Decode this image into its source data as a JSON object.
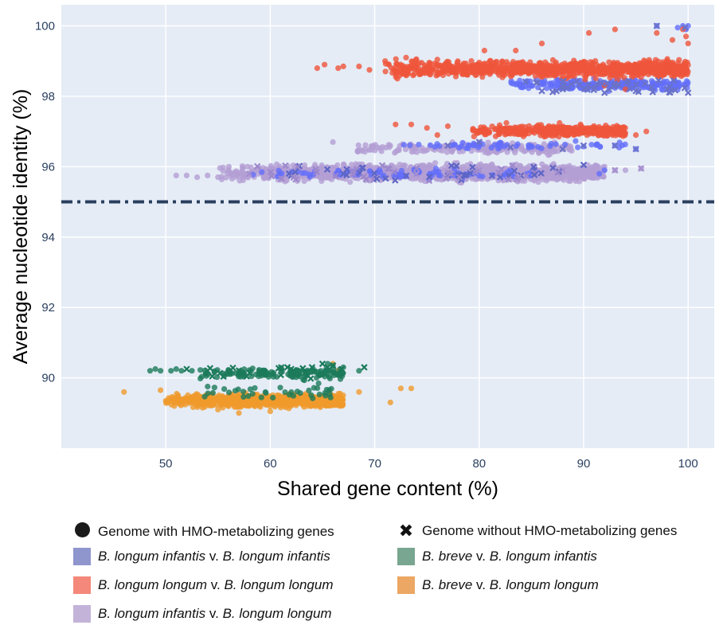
{
  "chart_data": {
    "type": "scatter",
    "xlabel": "Shared gene content (%)",
    "ylabel": "Average nucleotide identity (%)",
    "xlim": [
      40,
      102.5
    ],
    "ylim": [
      88.0,
      100.6
    ],
    "x_ticks": [
      "50",
      "60",
      "70",
      "80",
      "90",
      "100"
    ],
    "y_ticks": [
      "90",
      "92",
      "94",
      "96",
      "98",
      "100"
    ],
    "threshold": {
      "y": 95,
      "style": "dash-dot",
      "color": "#2a3f5f"
    },
    "background": "#e5ecf6",
    "series": [
      {
        "name": "B. longum longum v. B. longum longum",
        "color": "#ef553b",
        "clusters": [
          {
            "x_min": 71,
            "x_max": 100,
            "y_min": 98.45,
            "y_max": 99.1,
            "n": 950
          },
          {
            "x_min": 79,
            "x_max": 94,
            "y_min": 96.8,
            "y_max": 97.25,
            "n": 380
          }
        ],
        "points": [
          [
            64.5,
            98.8
          ],
          [
            65.2,
            98.9
          ],
          [
            66.5,
            98.8
          ],
          [
            67,
            98.85
          ],
          [
            68.5,
            98.85
          ],
          [
            69.5,
            98.75
          ],
          [
            71,
            99.0
          ],
          [
            73,
            99.1
          ],
          [
            74.5,
            98.95
          ],
          [
            72,
            97.2
          ],
          [
            73.5,
            97.2
          ],
          [
            75,
            97.1
          ],
          [
            76,
            96.9
          ],
          [
            77,
            97.15
          ],
          [
            96,
            97.0
          ],
          [
            95,
            96.9
          ],
          [
            80.5,
            99.3
          ],
          [
            83.5,
            99.3
          ],
          [
            86,
            99.5
          ],
          [
            90.5,
            99.8
          ],
          [
            93,
            99.9
          ],
          [
            97,
            99.8
          ],
          [
            99.5,
            99.9
          ],
          [
            98.5,
            99.6
          ],
          [
            99.8,
            99.7
          ],
          [
            100,
            99.5
          ],
          [
            92,
            98.3
          ],
          [
            94,
            98.2
          ]
        ]
      },
      {
        "name": "B. longum infantis v. B. longum infantis",
        "color": "#636efa",
        "clusters": [
          {
            "x_min": 83,
            "x_max": 100,
            "y_min": 98.1,
            "y_max": 98.55,
            "n": 260
          },
          {
            "x_min": 72,
            "x_max": 94,
            "y_min": 96.45,
            "y_max": 96.75,
            "n": 60
          },
          {
            "x_min": 58,
            "x_max": 86,
            "y_min": 95.6,
            "y_max": 96.0,
            "n": 90
          }
        ],
        "points": [
          [
            99.5,
            100.0
          ],
          [
            99.8,
            99.9
          ],
          [
            100,
            100.0
          ],
          [
            97,
            100.0
          ],
          [
            99,
            99.95
          ],
          [
            95,
            96.5
          ],
          [
            93,
            96.6
          ],
          [
            92,
            95.9
          ],
          [
            91.5,
            95.8
          ]
        ]
      },
      {
        "name": "B. longum infantis v. B. longum longum",
        "color": "#b49fd4",
        "clusters": [
          {
            "x_min": 55,
            "x_max": 92,
            "y_min": 95.5,
            "y_max": 96.15,
            "n": 1200
          },
          {
            "x_min": 68,
            "x_max": 89,
            "y_min": 96.3,
            "y_max": 96.75,
            "n": 220
          }
        ],
        "points": [
          [
            51,
            95.75
          ],
          [
            52,
            95.75
          ],
          [
            53,
            95.7
          ],
          [
            54,
            95.75
          ],
          [
            55,
            95.7
          ],
          [
            66,
            96.7
          ],
          [
            92,
            96.0
          ],
          [
            93,
            95.9
          ],
          [
            94,
            95.9
          ],
          [
            95.5,
            95.95
          ]
        ]
      },
      {
        "name": "B. breve v. B. longum infantis",
        "color": "#1b7a5a",
        "clusters": [
          {
            "x_min": 53,
            "x_max": 67,
            "y_min": 89.9,
            "y_max": 90.35,
            "n": 140
          },
          {
            "x_min": 53,
            "x_max": 66,
            "y_min": 89.3,
            "y_max": 89.9,
            "n": 40
          }
        ],
        "points": [
          [
            48.5,
            90.2
          ],
          [
            49.5,
            90.2
          ],
          [
            50.5,
            90.2
          ],
          [
            51.5,
            90.2
          ],
          [
            52.5,
            90.2
          ],
          [
            49,
            90.25
          ],
          [
            51,
            90.25
          ],
          [
            65.5,
            90.4
          ],
          [
            66,
            90.35
          ],
          [
            67,
            90.3
          ],
          [
            68.5,
            90.2
          ]
        ]
      },
      {
        "name": "B. breve v. B. longum longum",
        "color": "#f09a2c",
        "clusters": [
          {
            "x_min": 50,
            "x_max": 67,
            "y_min": 89.1,
            "y_max": 89.6,
            "n": 800
          }
        ],
        "points": [
          [
            46,
            89.6
          ],
          [
            49.5,
            89.65
          ],
          [
            50,
            89.35
          ],
          [
            55,
            89.1
          ],
          [
            57,
            89.0
          ],
          [
            60,
            89.05
          ],
          [
            66,
            90.4
          ],
          [
            66.5,
            90.2
          ],
          [
            68.5,
            89.6
          ],
          [
            71.5,
            89.3
          ],
          [
            72.5,
            89.7
          ],
          [
            73.5,
            89.7
          ]
        ]
      }
    ],
    "crosses": {
      "comment": "Genomes without HMO-metabolizing genes (x markers)",
      "points": [
        [
          97,
          100.0
        ],
        [
          99.7,
          99.95
        ],
        [
          86,
          98.15
        ],
        [
          88,
          98.2
        ],
        [
          92,
          98.1
        ],
        [
          95,
          98.15
        ],
        [
          98,
          98.2
        ],
        [
          100,
          98.1
        ],
        [
          77,
          96.6
        ],
        [
          80,
          96.7
        ],
        [
          83,
          96.55
        ],
        [
          88,
          96.5
        ],
        [
          90,
          96.6
        ],
        [
          93,
          96.6
        ],
        [
          95,
          96.5
        ],
        [
          58,
          95.8
        ],
        [
          62,
          95.75
        ],
        [
          67,
          95.8
        ],
        [
          70,
          95.7
        ],
        [
          74,
          95.8
        ],
        [
          77,
          95.75
        ],
        [
          80,
          95.9
        ],
        [
          82,
          95.7
        ],
        [
          84,
          95.75
        ],
        [
          86,
          95.8
        ],
        [
          88,
          95.9
        ],
        [
          90,
          96.05
        ],
        [
          93,
          95.9
        ],
        [
          95.5,
          95.95
        ],
        [
          52,
          90.25
        ],
        [
          54,
          90.2
        ],
        [
          59,
          90.2
        ],
        [
          62,
          90.25
        ],
        [
          64,
          90.3
        ],
        [
          65,
          90.4
        ],
        [
          66,
          90.35
        ],
        [
          69,
          90.3
        ]
      ]
    }
  },
  "legend": {
    "items": [
      {
        "kind": "dot",
        "text": "Genome with HMO-metabolizing genes"
      },
      {
        "kind": "cross",
        "text": "Genome without HMO-metabolizing genes"
      },
      {
        "kind": "swatch",
        "color": "#8f95cd",
        "a": "B. longum infantis",
        "mid": " v. ",
        "b": "B. longum infantis"
      },
      {
        "kind": "swatch",
        "color": "#79a690",
        "a": "B. breve",
        "mid": " v. ",
        "b": "B. longum infantis"
      },
      {
        "kind": "swatch",
        "color": "#f4887a",
        "a": "B. longum longum",
        "mid": " v. ",
        "b": "B. longum longum"
      },
      {
        "kind": "swatch",
        "color": "#eba763",
        "a": "B. breve",
        "mid": " v. ",
        "b": "B. longum longum"
      },
      {
        "kind": "swatch",
        "color": "#c4b3d9",
        "a": "B. longum infantis",
        "mid": " v. ",
        "b": "B. longum longum"
      }
    ]
  }
}
